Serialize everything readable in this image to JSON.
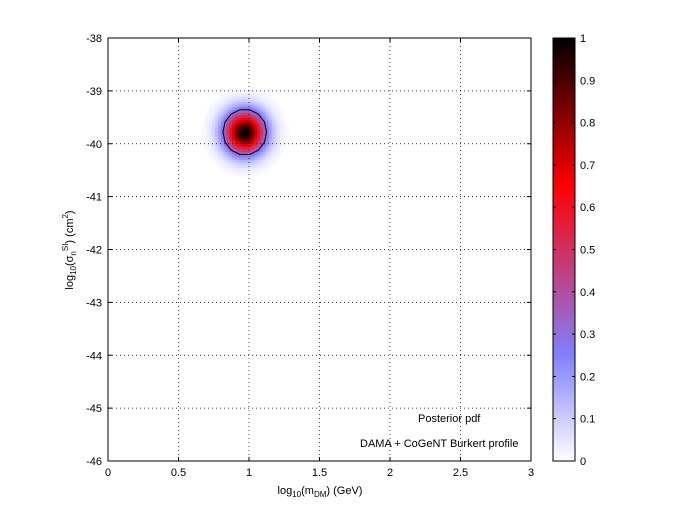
{
  "chart_data": {
    "type": "heatmap",
    "title": "",
    "xlabel": {
      "base": "log",
      "base_sub": "10",
      "open": "(m",
      "open_sub": "DM",
      "rest": ") (GeV)"
    },
    "ylabel": {
      "base": "log",
      "base_sub": "10",
      "open": "(σ",
      "sub": "n",
      "sup": "SI",
      "rest": ") (cm",
      "sup2": "2",
      "close": ")"
    },
    "xlim": [
      0,
      3
    ],
    "ylim": [
      -46,
      -38
    ],
    "xticks": [
      "0",
      "0.5",
      "1",
      "1.5",
      "2",
      "2.5",
      "3"
    ],
    "yticks": [
      "-38",
      "-39",
      "-40",
      "-41",
      "-42",
      "-43",
      "-44",
      "-45",
      "-46"
    ],
    "grid": true,
    "peak": {
      "x": 0.97,
      "y": -39.78,
      "sigma_x": 0.1,
      "sigma_y": 0.28
    },
    "contour_level": 0.3,
    "colorbar": {
      "min": 0,
      "max": 1,
      "ticks": [
        "0",
        "0.1",
        "0.2",
        "0.3",
        "0.4",
        "0.5",
        "0.6",
        "0.7",
        "0.8",
        "0.9",
        "1"
      ]
    },
    "annotations": [
      "Posterior pdf",
      "DAMA + CoGeNT Burkert profile"
    ]
  }
}
